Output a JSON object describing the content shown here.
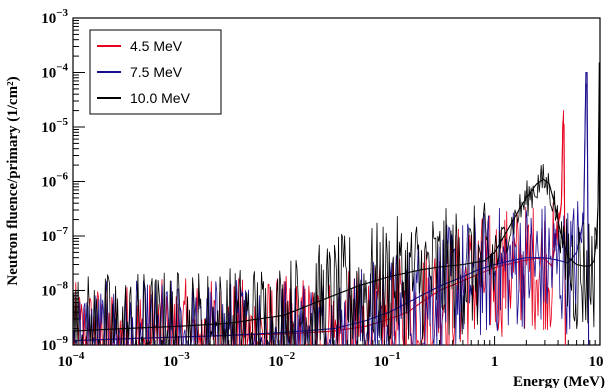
{
  "chart_data": {
    "type": "line",
    "title": "",
    "xlabel": "Energy (MeV)",
    "ylabel": "Neutron fluence/primary (1/cm²)",
    "xscale": "log",
    "yscale": "log",
    "xlim": [
      0.0001,
      10
    ],
    "ylim": [
      1e-09,
      0.001
    ],
    "grid": false,
    "legend_position": "top-left",
    "x_ticks": [
      {
        "value": 0.0001,
        "base": "10",
        "exp": "−4"
      },
      {
        "value": 0.001,
        "base": "10",
        "exp": "−3"
      },
      {
        "value": 0.01,
        "base": "10",
        "exp": "−2"
      },
      {
        "value": 0.1,
        "base": "10",
        "exp": "−1"
      },
      {
        "value": 1,
        "base": "1",
        "exp": ""
      },
      {
        "value": 10,
        "base": "10",
        "exp": ""
      }
    ],
    "y_ticks": [
      {
        "value": 1e-09,
        "base": "10",
        "exp": "−9"
      },
      {
        "value": 1e-08,
        "base": "10",
        "exp": "−8"
      },
      {
        "value": 1e-07,
        "base": "10",
        "exp": "−7"
      },
      {
        "value": 1e-06,
        "base": "10",
        "exp": "−6"
      },
      {
        "value": 1e-05,
        "base": "10",
        "exp": "−5"
      },
      {
        "value": 0.0001,
        "base": "10",
        "exp": "−4"
      },
      {
        "value": 0.001,
        "base": "10",
        "exp": "−3"
      }
    ],
    "series": [
      {
        "name": "4.5 MeV",
        "color": "#e8001c",
        "points": [
          [
            0.0001,
            1.2e-09
          ],
          [
            0.0003,
            1.3e-09
          ],
          [
            0.001,
            1.4e-09
          ],
          [
            0.003,
            1.5e-09
          ],
          [
            0.01,
            1.6e-09
          ],
          [
            0.03,
            1.8e-09
          ],
          [
            0.06,
            2.2e-09
          ],
          [
            0.1,
            3e-09
          ],
          [
            0.15,
            4e-09
          ],
          [
            0.2,
            6e-09
          ],
          [
            0.3,
            1e-08
          ],
          [
            0.5,
            1.5e-08
          ],
          [
            0.7,
            2e-08
          ],
          [
            1,
            2.6e-08
          ],
          [
            1.5,
            3.2e-08
          ],
          [
            2,
            3.6e-08
          ],
          [
            2.5,
            3.9e-08
          ],
          [
            3,
            3.8e-08
          ],
          [
            3.5,
            2.8e-08
          ],
          [
            4,
            1.5e-07
          ],
          [
            4.3,
            4e-07
          ],
          [
            4.45,
            1.2e-05
          ],
          [
            4.55,
            1.1e-05
          ],
          [
            4.7,
            1e-09
          ]
        ]
      },
      {
        "name": "7.5 MeV",
        "color": "#1a0f8f",
        "points": [
          [
            0.0001,
            1.2e-09
          ],
          [
            0.0003,
            1.3e-09
          ],
          [
            0.001,
            1.4e-09
          ],
          [
            0.003,
            1.5e-09
          ],
          [
            0.01,
            1.7e-09
          ],
          [
            0.03,
            2e-09
          ],
          [
            0.06,
            2.8e-09
          ],
          [
            0.1,
            4e-09
          ],
          [
            0.15,
            6e-09
          ],
          [
            0.2,
            8e-09
          ],
          [
            0.3,
            1.2e-08
          ],
          [
            0.5,
            1.8e-08
          ],
          [
            0.7,
            2.4e-08
          ],
          [
            1,
            3e-08
          ],
          [
            1.5,
            3.6e-08
          ],
          [
            2,
            4e-08
          ],
          [
            3,
            4e-08
          ],
          [
            4,
            3.6e-08
          ],
          [
            5,
            3.2e-08
          ],
          [
            6,
            5e-08
          ],
          [
            7,
            2e-07
          ],
          [
            7.35,
            0.0001
          ],
          [
            7.55,
            0.0001
          ],
          [
            7.8,
            1e-09
          ]
        ]
      },
      {
        "name": "10.0 MeV",
        "color": "#000000",
        "points": [
          [
            0.0001,
            1.8e-09
          ],
          [
            0.0003,
            2e-09
          ],
          [
            0.001,
            2.2e-09
          ],
          [
            0.003,
            2.5e-09
          ],
          [
            0.01,
            3.5e-09
          ],
          [
            0.02,
            6e-09
          ],
          [
            0.05,
            1.2e-08
          ],
          [
            0.1,
            1.8e-08
          ],
          [
            0.2,
            2.4e-08
          ],
          [
            0.3,
            2.7e-08
          ],
          [
            0.5,
            3e-08
          ],
          [
            0.8,
            3.5e-08
          ],
          [
            1,
            5e-08
          ],
          [
            1.3,
            1.2e-07
          ],
          [
            1.7,
            3e-07
          ],
          [
            2,
            5e-07
          ],
          [
            2.5,
            9e-07
          ],
          [
            2.9,
            1.1e-06
          ],
          [
            3.3,
            9e-07
          ],
          [
            3.7,
            4e-07
          ],
          [
            4.2,
            1.2e-07
          ],
          [
            5,
            4e-08
          ],
          [
            6,
            3e-08
          ],
          [
            7,
            2.8e-08
          ],
          [
            8,
            2.8e-08
          ],
          [
            8.8,
            3.5e-08
          ],
          [
            9.3,
            1e-07
          ],
          [
            9.6,
            4e-07
          ],
          [
            9.85,
            0.00015
          ],
          [
            9.95,
            0.00015
          ],
          [
            10,
            1e-09
          ]
        ]
      }
    ]
  }
}
